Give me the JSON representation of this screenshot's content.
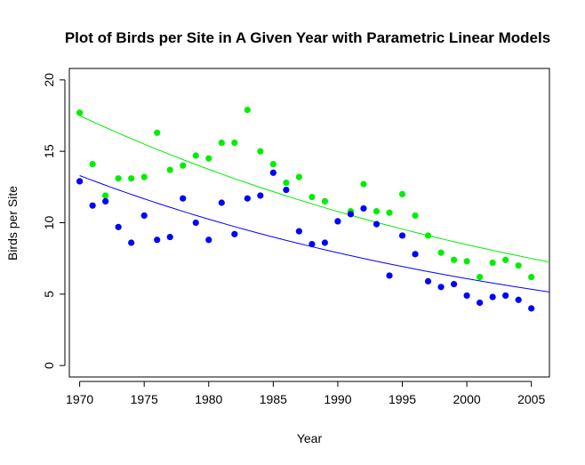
{
  "chart_data": {
    "type": "scatter",
    "title": "Plot of Birds per Site in A Given Year with Parametric Linear Models",
    "xlabel": "Year",
    "ylabel": "Birds per Site",
    "xlim": [
      1969.2,
      2006.4
    ],
    "ylim": [
      -0.8,
      20.8
    ],
    "x_ticks": [
      1970,
      1975,
      1980,
      1985,
      1990,
      1995,
      2000,
      2005
    ],
    "y_ticks": [
      0,
      5,
      10,
      15,
      20
    ],
    "grid": false,
    "legend": "none",
    "series": [
      {
        "color": "#00ee00",
        "points": [
          [
            1970,
            17.7
          ],
          [
            1971,
            14.1
          ],
          [
            1972,
            11.9
          ],
          [
            1973,
            13.1
          ],
          [
            1974,
            13.1
          ],
          [
            1975,
            13.2
          ],
          [
            1976,
            16.3
          ],
          [
            1977,
            13.7
          ],
          [
            1978,
            14.0
          ],
          [
            1979,
            14.7
          ],
          [
            1980,
            14.5
          ],
          [
            1981,
            15.6
          ],
          [
            1982,
            15.6
          ],
          [
            1983,
            17.9
          ],
          [
            1984,
            15.0
          ],
          [
            1985,
            14.1
          ],
          [
            1986,
            12.8
          ],
          [
            1987,
            13.2
          ],
          [
            1988,
            11.8
          ],
          [
            1989,
            11.5
          ],
          [
            1990,
            10.1
          ],
          [
            1991,
            10.8
          ],
          [
            1992,
            12.7
          ],
          [
            1993,
            10.8
          ],
          [
            1994,
            10.7
          ],
          [
            1995,
            12.0
          ],
          [
            1996,
            10.5
          ],
          [
            1997,
            9.1
          ],
          [
            1998,
            7.9
          ],
          [
            1999,
            7.4
          ],
          [
            2000,
            7.3
          ],
          [
            2001,
            6.2
          ],
          [
            2002,
            7.2
          ],
          [
            2003,
            7.4
          ],
          [
            2004,
            7.0
          ],
          [
            2005,
            6.2
          ]
        ],
        "fit": {
          "type": "exponential",
          "y_at_start": 17.5,
          "y_at_end": 7.25,
          "x_start": 1970,
          "x_end": 2006.4
        }
      },
      {
        "color": "#0000ff",
        "points": [
          [
            1970,
            12.9
          ],
          [
            1971,
            11.2
          ],
          [
            1972,
            11.5
          ],
          [
            1973,
            9.7
          ],
          [
            1974,
            8.6
          ],
          [
            1975,
            10.5
          ],
          [
            1976,
            8.8
          ],
          [
            1977,
            9.0
          ],
          [
            1978,
            11.7
          ],
          [
            1979,
            10.0
          ],
          [
            1980,
            8.8
          ],
          [
            1981,
            11.4
          ],
          [
            1982,
            9.2
          ],
          [
            1983,
            11.7
          ],
          [
            1984,
            11.9
          ],
          [
            1985,
            13.5
          ],
          [
            1986,
            12.3
          ],
          [
            1987,
            9.4
          ],
          [
            1988,
            8.5
          ],
          [
            1989,
            8.6
          ],
          [
            1990,
            10.1
          ],
          [
            1991,
            10.6
          ],
          [
            1992,
            11.0
          ],
          [
            1993,
            9.9
          ],
          [
            1994,
            6.3
          ],
          [
            1995,
            9.1
          ],
          [
            1996,
            7.8
          ],
          [
            1997,
            5.9
          ],
          [
            1998,
            5.5
          ],
          [
            1999,
            5.7
          ],
          [
            2000,
            4.9
          ],
          [
            2001,
            4.4
          ],
          [
            2002,
            4.8
          ],
          [
            2003,
            4.9
          ],
          [
            2004,
            4.6
          ],
          [
            2005,
            4.0
          ]
        ],
        "fit": {
          "type": "exponential",
          "y_at_start": 13.3,
          "y_at_end": 5.15,
          "x_start": 1970,
          "x_end": 2006.4
        }
      }
    ]
  }
}
